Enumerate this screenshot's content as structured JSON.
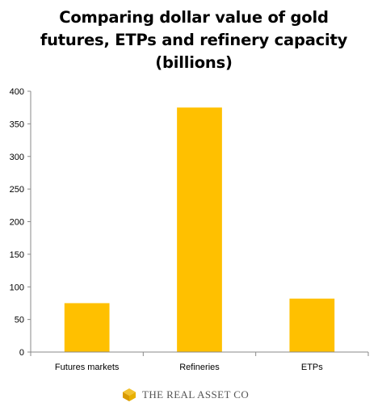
{
  "chart_data": {
    "type": "bar",
    "title": "Comparing dollar value of gold futures, ETPs and refinery capacity (billions)",
    "categories": [
      "Futures markets",
      "Refineries",
      "ETPs"
    ],
    "values": [
      75,
      375,
      82
    ],
    "ylim": [
      0,
      400
    ],
    "yticks": [
      0,
      50,
      100,
      150,
      200,
      250,
      300,
      350,
      400
    ],
    "grid": false,
    "legend": "none",
    "bar_color": "#FFC000",
    "axis_color": "#888888"
  },
  "logo": {
    "text": "The Real Asset Co",
    "icon": "real-asset-logo-icon",
    "color": "#E8A900"
  }
}
